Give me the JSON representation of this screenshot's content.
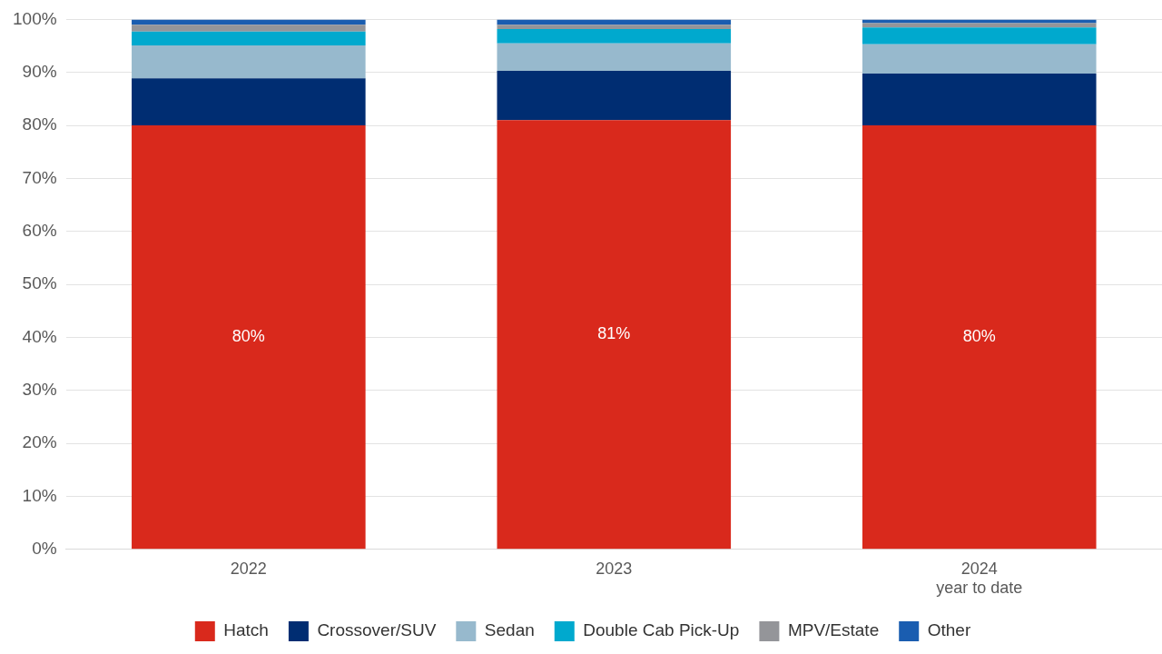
{
  "chart_data": {
    "type": "bar",
    "stacked": true,
    "grid": true,
    "legend": "bottom",
    "categories": [
      "2022",
      "2023",
      "2024\nyear to date"
    ],
    "ylim": [
      0,
      100
    ],
    "yticks": [
      {
        "value": 0,
        "label": "0%"
      },
      {
        "value": 10,
        "label": "10%"
      },
      {
        "value": 20,
        "label": "20%"
      },
      {
        "value": 30,
        "label": "30%"
      },
      {
        "value": 40,
        "label": "40%"
      },
      {
        "value": 50,
        "label": "50%"
      },
      {
        "value": 60,
        "label": "60%"
      },
      {
        "value": 70,
        "label": "70%"
      },
      {
        "value": 80,
        "label": "80%"
      },
      {
        "value": 90,
        "label": "90%"
      },
      {
        "value": 100,
        "label": "100%"
      }
    ],
    "series": [
      {
        "name": "Hatch",
        "color": "#d9291c",
        "values": [
          80,
          81,
          80
        ],
        "value_labels": [
          "80%",
          "81%",
          "80%"
        ]
      },
      {
        "name": "Crossover/SUV",
        "color": "#002d72",
        "values": [
          8.9,
          9.3,
          9.8
        ]
      },
      {
        "name": "Sedan",
        "color": "#97b9cd",
        "values": [
          6.2,
          5.2,
          5.5
        ]
      },
      {
        "name": "Double Cab Pick-Up",
        "color": "#00a9ce",
        "values": [
          2.6,
          2.7,
          3.2
        ]
      },
      {
        "name": "MPV/Estate",
        "color": "#949599",
        "values": [
          1.3,
          0.8,
          0.8
        ]
      },
      {
        "name": "Other",
        "color": "#1a5db0",
        "values": [
          1.0,
          1.0,
          0.7
        ]
      }
    ]
  }
}
